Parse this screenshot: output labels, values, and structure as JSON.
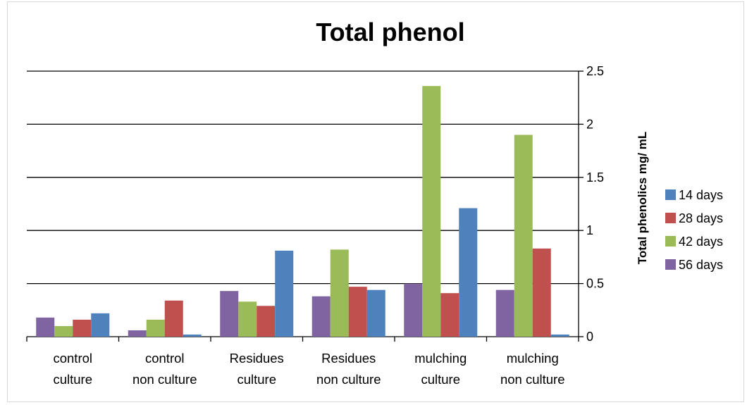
{
  "chart_data": {
    "type": "bar",
    "title": "Total phenol",
    "ylabel": "Total phenolics mg/ mL",
    "xlabel": "",
    "ylim": [
      0,
      2.5
    ],
    "yticks": [
      0,
      0.5,
      1,
      1.5,
      2,
      2.5
    ],
    "ytick_labels": [
      "0",
      "0.5",
      "1",
      "1.5",
      "2",
      "2.5"
    ],
    "y_axis_side": "right",
    "grid": true,
    "legend_position": "right",
    "categories": [
      [
        "control",
        "culture"
      ],
      [
        "control",
        "non culture"
      ],
      [
        "Residues",
        "culture"
      ],
      [
        "Residues",
        "non culture"
      ],
      [
        "mulching",
        "culture"
      ],
      [
        "mulching",
        "non culture"
      ]
    ],
    "bar_order": [
      "56 days",
      "42 days",
      "28 days",
      "14 days"
    ],
    "series": [
      {
        "name": "14 days",
        "color": "#4f81bd",
        "values": [
          0.22,
          0.02,
          0.81,
          0.44,
          1.21,
          0.02
        ]
      },
      {
        "name": "28 days",
        "color": "#c0504d",
        "values": [
          0.16,
          0.34,
          0.29,
          0.47,
          0.41,
          0.83
        ]
      },
      {
        "name": "42 days",
        "color": "#9bbb59",
        "values": [
          0.1,
          0.16,
          0.33,
          0.82,
          2.36,
          1.9
        ]
      },
      {
        "name": "56 days",
        "color": "#8064a2",
        "values": [
          0.18,
          0.06,
          0.43,
          0.38,
          0.5,
          0.44
        ]
      }
    ]
  }
}
